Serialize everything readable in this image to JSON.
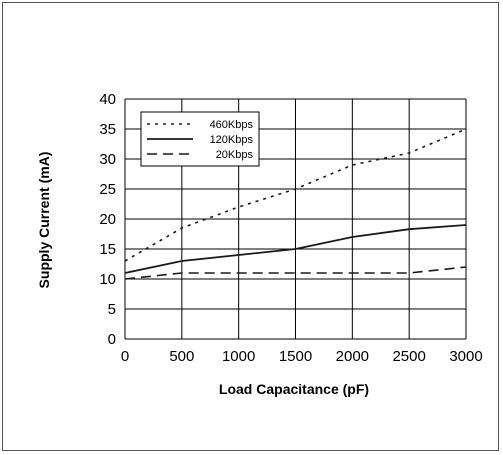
{
  "chart_data": {
    "type": "line",
    "title": "",
    "xlabel": "Load Capacitance (pF)",
    "ylabel": "Supply Current (mA)",
    "x": [
      0,
      500,
      1000,
      1500,
      2000,
      2500,
      3000
    ],
    "xlim": [
      0,
      3000
    ],
    "ylim": [
      0,
      40
    ],
    "xticks": [
      "0",
      "500",
      "1000",
      "1500",
      "2000",
      "2500",
      "3000"
    ],
    "yticks": [
      "0",
      "5",
      "10",
      "15",
      "20",
      "25",
      "30",
      "35",
      "40"
    ],
    "grid": true,
    "legend_position": "top-left",
    "series": [
      {
        "name": "460Kbps",
        "line_style": "dotted",
        "values": [
          13,
          18.5,
          22,
          25,
          29,
          31,
          35
        ]
      },
      {
        "name": "120Kbps",
        "line_style": "solid",
        "values": [
          11,
          13,
          14,
          15,
          17,
          18.3,
          19
        ]
      },
      {
        "name": "20Kbps",
        "line_style": "dashed",
        "values": [
          10,
          11,
          11,
          11,
          11,
          11,
          12
        ]
      }
    ],
    "colors": {
      "lines": "#1a1a1a",
      "grid": "#000000"
    }
  }
}
